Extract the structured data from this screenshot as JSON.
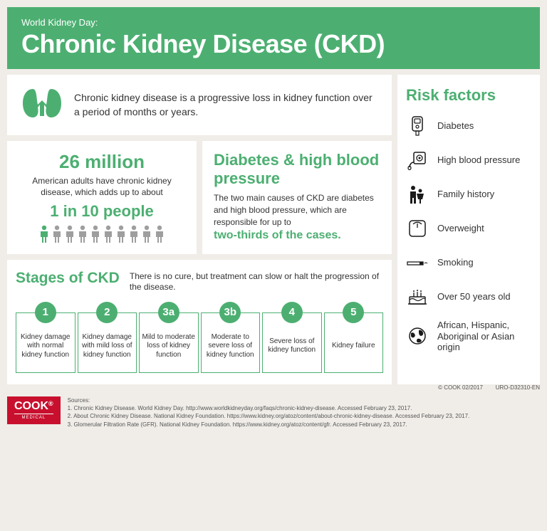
{
  "colors": {
    "primary": "#4caf71",
    "background": "#f0ede8",
    "card": "#ffffff",
    "text": "#333333",
    "logo": "#c8102e",
    "icon": "#1a1a1a",
    "muted": "#9e9e9e"
  },
  "header": {
    "overline": "World Kidney Day:",
    "title": "Chronic Kidney Disease (CKD)"
  },
  "intro": {
    "text": "Chronic kidney disease is a progressive loss in kidney function over a period of months or years."
  },
  "stat_box": {
    "big": "26 million",
    "sub": "American adults have chronic kidney disease, which adds up to about",
    "highlight": "1 in 10 people",
    "people_count": 10,
    "people_active_index": 0
  },
  "causes_box": {
    "title": "Diabetes & high blood  pressure",
    "text": "The two main causes of CKD are diabetes and high blood pressure, which are responsible for up to",
    "emphasis": "two-thirds of the cases."
  },
  "stages": {
    "title": "Stages of CKD",
    "sub": "There is no cure, but treatment can slow or halt the progression of the disease.",
    "items": [
      {
        "num": "1",
        "desc": "Kidney damage with normal kidney function"
      },
      {
        "num": "2",
        "desc": "Kidney damage with mild loss of kidney function"
      },
      {
        "num": "3a",
        "desc": "Mild to moderate loss of kidney function"
      },
      {
        "num": "3b",
        "desc": "Moderate to severe loss of kidney function"
      },
      {
        "num": "4",
        "desc": "Severe loss of kidney function"
      },
      {
        "num": "5",
        "desc": "Kidney failure"
      }
    ]
  },
  "risk": {
    "title": "Risk factors",
    "items": [
      {
        "icon": "glucometer",
        "label": "Diabetes"
      },
      {
        "icon": "bp-monitor",
        "label": "High blood pressure"
      },
      {
        "icon": "family",
        "label": "Family history"
      },
      {
        "icon": "scale",
        "label": "Overweight"
      },
      {
        "icon": "cigarette",
        "label": "Smoking"
      },
      {
        "icon": "cake",
        "label": "Over 50 years old"
      },
      {
        "icon": "globe",
        "label": "African, Hispanic, Aboriginal or Asian origin"
      }
    ]
  },
  "footer": {
    "copyright": "© COOK 02/2017        URO-D32310-EN",
    "logo_main": "COOK",
    "logo_reg": "®",
    "logo_sub": "MEDICAL",
    "sources_heading": "Sources:",
    "sources": [
      "1. Chronic Kidney Disease. World Kidney Day. http://www.worldkidneyday.org/faqs/chronic-kidney-disease. Accessed February 23, 2017.",
      "2. About Chronic Kidney Disease. National Kidney Foundation. https://www.kidney.org/atoz/content/about-chronic-kidney-disease. Accessed February 23, 2017.",
      "3. Glomerular Filtration Rate (GFR). National Kidney Foundation. https://www.kidney.org/atoz/content/gfr. Accessed February 23, 2017."
    ]
  }
}
